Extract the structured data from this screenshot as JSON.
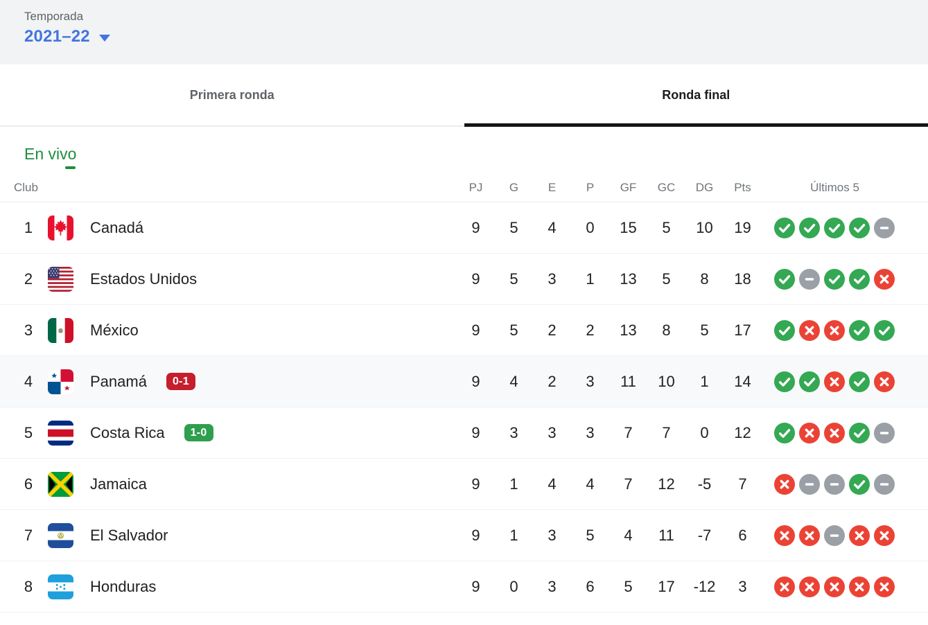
{
  "season": {
    "label": "Temporada",
    "value": "2021–22"
  },
  "tabs": [
    {
      "label": "Primera ronda",
      "active": false
    },
    {
      "label": "Ronda final",
      "active": true
    }
  ],
  "live_label": "En vivo",
  "table": {
    "club_header": "Club",
    "columns": [
      "PJ",
      "G",
      "E",
      "P",
      "GF",
      "GC",
      "DG",
      "Pts"
    ],
    "form_header": "Últimos 5",
    "rows": [
      {
        "pos": "1",
        "flag": "canada",
        "club": "Canadá",
        "stats": [
          "9",
          "5",
          "4",
          "0",
          "15",
          "5",
          "10",
          "19"
        ],
        "form": [
          "W",
          "W",
          "W",
          "W",
          "D"
        ],
        "badge": null,
        "highlight": false
      },
      {
        "pos": "2",
        "flag": "estados-unidos",
        "club": "Estados Unidos",
        "stats": [
          "9",
          "5",
          "3",
          "1",
          "13",
          "5",
          "8",
          "18"
        ],
        "form": [
          "W",
          "D",
          "W",
          "W",
          "L"
        ],
        "badge": null,
        "highlight": false
      },
      {
        "pos": "3",
        "flag": "mexico",
        "club": "México",
        "stats": [
          "9",
          "5",
          "2",
          "2",
          "13",
          "8",
          "5",
          "17"
        ],
        "form": [
          "W",
          "L",
          "L",
          "W",
          "W"
        ],
        "badge": null,
        "highlight": false
      },
      {
        "pos": "4",
        "flag": "panama",
        "club": "Panamá",
        "stats": [
          "9",
          "4",
          "2",
          "3",
          "11",
          "10",
          "1",
          "14"
        ],
        "form": [
          "W",
          "W",
          "L",
          "W",
          "L"
        ],
        "badge": {
          "text": "0-1",
          "color": "#c51e2d"
        },
        "highlight": true
      },
      {
        "pos": "5",
        "flag": "costa-rica",
        "club": "Costa Rica",
        "stats": [
          "9",
          "3",
          "3",
          "3",
          "7",
          "7",
          "0",
          "12"
        ],
        "form": [
          "W",
          "L",
          "L",
          "W",
          "D"
        ],
        "badge": {
          "text": "1-0",
          "color": "#2e9e4f"
        },
        "highlight": false
      },
      {
        "pos": "6",
        "flag": "jamaica",
        "club": "Jamaica",
        "stats": [
          "9",
          "1",
          "4",
          "4",
          "7",
          "12",
          "-5",
          "7"
        ],
        "form": [
          "L",
          "D",
          "D",
          "W",
          "D"
        ],
        "badge": null,
        "highlight": false
      },
      {
        "pos": "7",
        "flag": "el-salvador",
        "club": "El Salvador",
        "stats": [
          "9",
          "1",
          "3",
          "5",
          "4",
          "11",
          "-7",
          "6"
        ],
        "form": [
          "L",
          "L",
          "D",
          "L",
          "L"
        ],
        "badge": null,
        "highlight": false
      },
      {
        "pos": "8",
        "flag": "honduras",
        "club": "Honduras",
        "stats": [
          "9",
          "0",
          "3",
          "6",
          "5",
          "17",
          "-12",
          "3"
        ],
        "form": [
          "L",
          "L",
          "L",
          "L",
          "L"
        ],
        "badge": null,
        "highlight": false
      }
    ]
  },
  "colors": {
    "win": "#34a853",
    "draw": "#9aa0a6",
    "loss": "#ea4335",
    "live_green": "#1e8e3e",
    "link_blue": "#4374e0",
    "badge_red": "#c51e2d",
    "badge_green": "#2e9e4f",
    "highlight_row": "#f8f9fa",
    "season_bar_bg": "#f1f3f4"
  }
}
